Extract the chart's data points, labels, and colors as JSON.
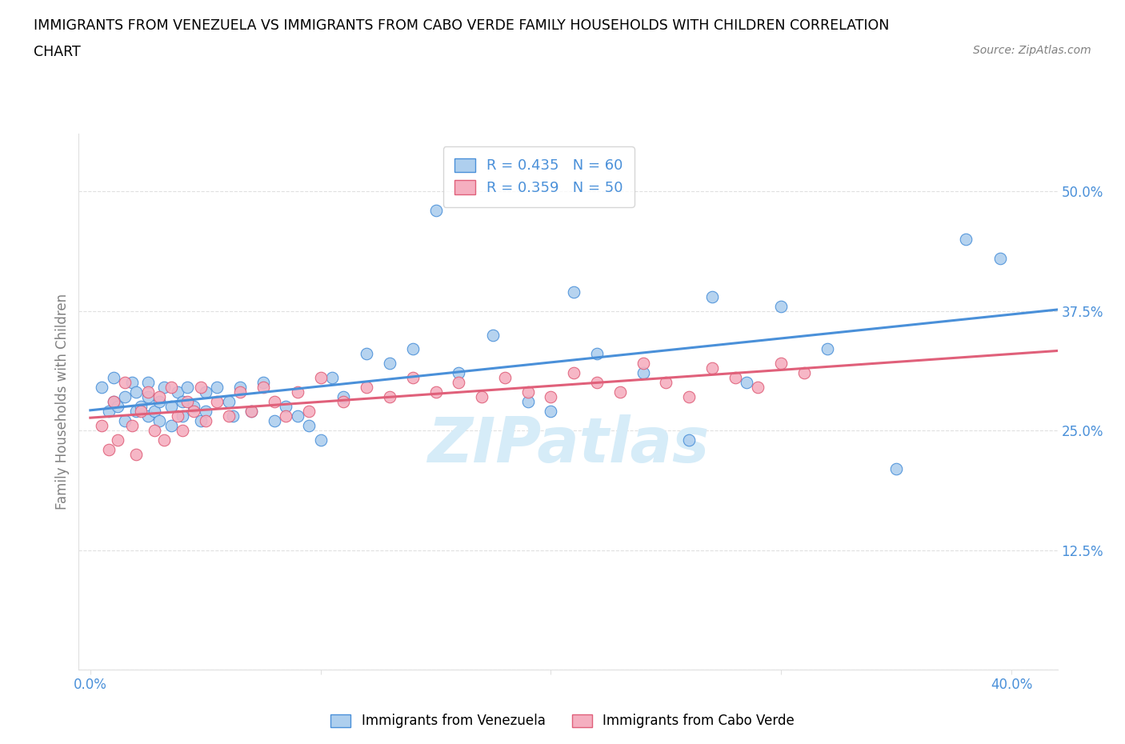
{
  "title_line1": "IMMIGRANTS FROM VENEZUELA VS IMMIGRANTS FROM CABO VERDE FAMILY HOUSEHOLDS WITH CHILDREN CORRELATION",
  "title_line2": "CHART",
  "source": "Source: ZipAtlas.com",
  "ylabel": "Family Households with Children",
  "xlim": [
    -0.005,
    0.42
  ],
  "ylim": [
    0.0,
    0.56
  ],
  "xticks": [
    0.0,
    0.1,
    0.2,
    0.3,
    0.4
  ],
  "xticklabels": [
    "0.0%",
    "",
    "",
    "",
    "40.0%"
  ],
  "yticks": [
    0.0,
    0.125,
    0.25,
    0.375,
    0.5
  ],
  "yticklabels": [
    "",
    "12.5%",
    "25.0%",
    "37.5%",
    "50.0%"
  ],
  "legend_label1": "Immigrants from Venezuela",
  "legend_label2": "Immigrants from Cabo Verde",
  "R1": 0.435,
  "N1": 60,
  "R2": 0.359,
  "N2": 50,
  "color1": "#aecfee",
  "color2": "#f5afc0",
  "line_color1": "#4a90d9",
  "line_color2": "#e0607a",
  "tick_color": "#4a90d9",
  "watermark_text": "ZIPatlas",
  "watermark_color": "#d6ecf8",
  "grid_color": "#e0e0e0",
  "venezuela_x": [
    0.005,
    0.008,
    0.01,
    0.01,
    0.012,
    0.015,
    0.015,
    0.018,
    0.02,
    0.02,
    0.022,
    0.025,
    0.025,
    0.025,
    0.028,
    0.03,
    0.03,
    0.032,
    0.035,
    0.035,
    0.038,
    0.04,
    0.04,
    0.042,
    0.045,
    0.048,
    0.05,
    0.05,
    0.055,
    0.06,
    0.062,
    0.065,
    0.07,
    0.075,
    0.08,
    0.085,
    0.09,
    0.095,
    0.1,
    0.105,
    0.11,
    0.12,
    0.13,
    0.14,
    0.15,
    0.16,
    0.175,
    0.19,
    0.2,
    0.21,
    0.22,
    0.24,
    0.26,
    0.27,
    0.285,
    0.3,
    0.32,
    0.35,
    0.38,
    0.395
  ],
  "venezuela_y": [
    0.295,
    0.27,
    0.28,
    0.305,
    0.275,
    0.26,
    0.285,
    0.3,
    0.27,
    0.29,
    0.275,
    0.265,
    0.285,
    0.3,
    0.27,
    0.28,
    0.26,
    0.295,
    0.275,
    0.255,
    0.29,
    0.265,
    0.28,
    0.295,
    0.275,
    0.26,
    0.29,
    0.27,
    0.295,
    0.28,
    0.265,
    0.295,
    0.27,
    0.3,
    0.26,
    0.275,
    0.265,
    0.255,
    0.24,
    0.305,
    0.285,
    0.33,
    0.32,
    0.335,
    0.48,
    0.31,
    0.35,
    0.28,
    0.27,
    0.395,
    0.33,
    0.31,
    0.24,
    0.39,
    0.3,
    0.38,
    0.335,
    0.21,
    0.45,
    0.43
  ],
  "caboverde_x": [
    0.005,
    0.008,
    0.01,
    0.012,
    0.015,
    0.018,
    0.02,
    0.022,
    0.025,
    0.028,
    0.03,
    0.032,
    0.035,
    0.038,
    0.04,
    0.042,
    0.045,
    0.048,
    0.05,
    0.055,
    0.06,
    0.065,
    0.07,
    0.075,
    0.08,
    0.085,
    0.09,
    0.095,
    0.1,
    0.11,
    0.12,
    0.13,
    0.14,
    0.15,
    0.16,
    0.17,
    0.18,
    0.19,
    0.2,
    0.21,
    0.22,
    0.23,
    0.24,
    0.25,
    0.26,
    0.27,
    0.28,
    0.29,
    0.3,
    0.31
  ],
  "caboverde_y": [
    0.255,
    0.23,
    0.28,
    0.24,
    0.3,
    0.255,
    0.225,
    0.27,
    0.29,
    0.25,
    0.285,
    0.24,
    0.295,
    0.265,
    0.25,
    0.28,
    0.27,
    0.295,
    0.26,
    0.28,
    0.265,
    0.29,
    0.27,
    0.295,
    0.28,
    0.265,
    0.29,
    0.27,
    0.305,
    0.28,
    0.295,
    0.285,
    0.305,
    0.29,
    0.3,
    0.285,
    0.305,
    0.29,
    0.285,
    0.31,
    0.3,
    0.29,
    0.32,
    0.3,
    0.285,
    0.315,
    0.305,
    0.295,
    0.32,
    0.31
  ]
}
